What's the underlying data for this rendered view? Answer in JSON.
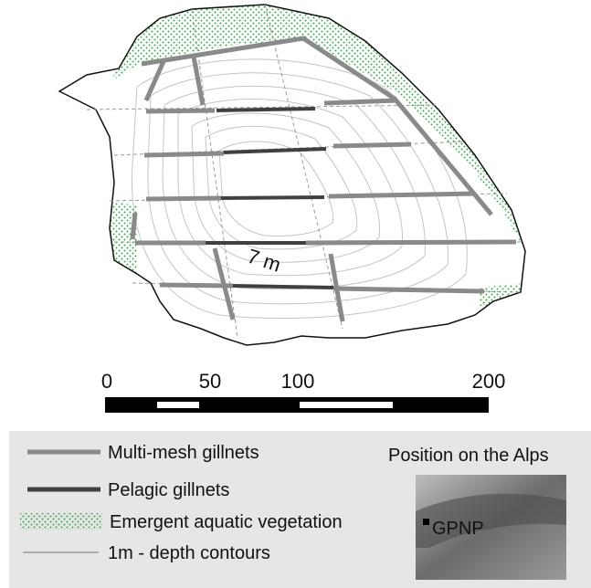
{
  "map": {
    "depth_label": "7 m",
    "scale_labels": [
      "0",
      "50",
      "100",
      "200"
    ]
  },
  "legend": {
    "items": [
      "Multi-mesh gillnets",
      "Pelagic gillnets",
      "Emergent aquatic vegetation",
      "1m - depth contours"
    ],
    "inset_title": "Position on the Alps",
    "inset_label": "GPNP"
  }
}
